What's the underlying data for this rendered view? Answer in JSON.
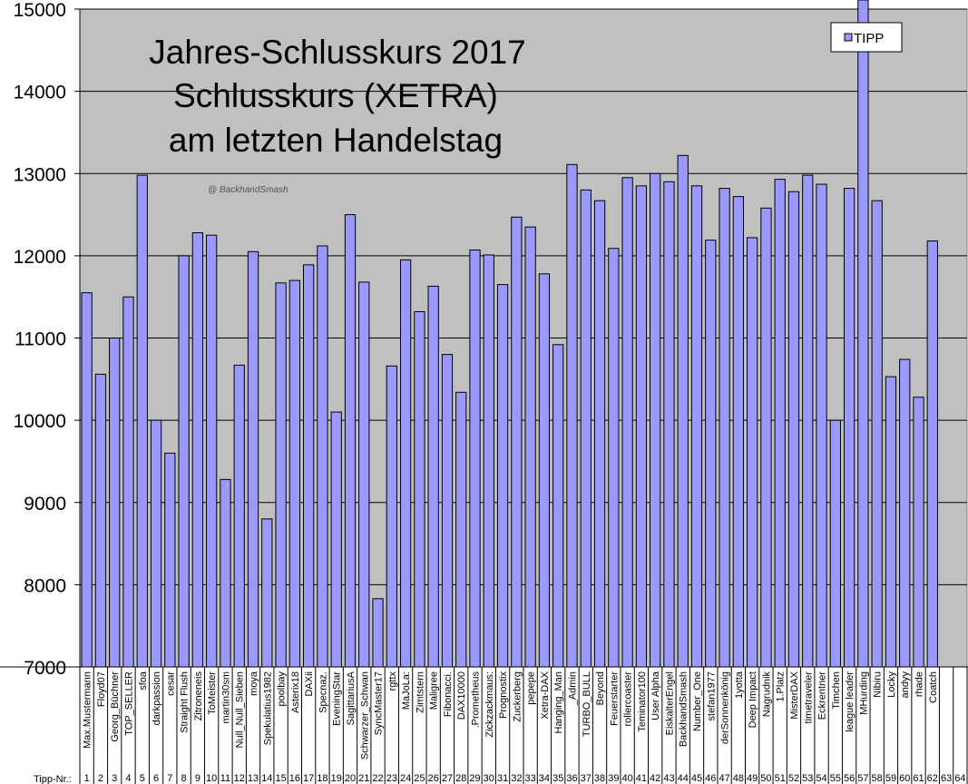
{
  "chart_data": {
    "type": "bar",
    "title": [
      "Jahres-Schlusskurs 2017",
      "Schlusskurs (XETRA)",
      "am letzten Handelstag"
    ],
    "watermark": "@ BackhandSmash",
    "xlabel": "Tipp-Nr.:",
    "ylabel": "",
    "ylim": [
      7000,
      15000
    ],
    "yticks": [
      7000,
      8000,
      9000,
      10000,
      11000,
      12000,
      13000,
      14000,
      15000
    ],
    "grid": true,
    "legend": {
      "position": "top-right",
      "entries": [
        "TIPP"
      ]
    },
    "colors": {
      "bar": "#9999FF",
      "plot_bg": "#C0C0C0",
      "bar_edge": "#000000"
    },
    "categories": [
      "Max.Mustermann",
      "Floyd07",
      "Georg_Büchner",
      "TOP_SELLER",
      "sfoa",
      "darkpassion",
      "cesar",
      "Straight Flush",
      "Zitroneneis",
      "ToMeister",
      "martin30sm",
      "Null_Null_Sieben",
      "moya",
      "Spekulatius1982",
      "poolbay",
      "Asterix18",
      "DAXii",
      "Specnaz.",
      "EveningStar",
      "SagittariusA",
      "Schwarzer_Schwan",
      "SyncMaster17",
      "rgttx",
      "MaJoLa:",
      "Zimtstern",
      "Maligree",
      "Fibonacci.",
      "DAX10000",
      ".Prometheus",
      "Zickzackmaus:",
      "Prognostix",
      "Zuckerberg",
      "pepepe",
      "Xetra-DAX",
      "Hanging_Man",
      "_Admin",
      "TURBO_BULL",
      "Beyond",
      "Feuerstarter",
      "rollercoaster",
      "Teminator100",
      "User Alpha",
      "EiskalterEngel",
      "BackhandSmash",
      "Number_One",
      "stefan1977",
      "derSonnenkönig",
      "1yotta",
      "Deep Impact",
      "Nagrudnik",
      "1.Platz",
      "MisterDAX",
      "timetraveler",
      "Eckrentner",
      "Timchen",
      "league leader",
      "MHurding",
      "Nibiru",
      "Locky",
      "andyy",
      "rhade",
      "Coatch",
      "",
      ""
    ],
    "tipp_nr": [
      "1",
      "2",
      "3",
      "4",
      "5",
      "6",
      "7",
      "8",
      "9",
      "10",
      "11",
      "12",
      "13",
      "14",
      "15",
      "16",
      "17",
      "18",
      "19",
      "20",
      "21",
      "22",
      "23",
      "24",
      "25",
      "26",
      "27",
      "28",
      "29",
      "30",
      "31",
      "32",
      "33",
      "34",
      "35",
      "36",
      "37",
      "38",
      "39",
      "40",
      "41",
      "42",
      "43",
      "44",
      "45",
      "46",
      "47",
      "48",
      "49",
      "50",
      "51",
      "52",
      "53",
      "54",
      "55",
      "56",
      "57",
      "58",
      "59",
      "60",
      "61",
      "62",
      "63",
      "64"
    ],
    "series": [
      {
        "name": "TIPP",
        "values": [
          11550,
          10560,
          11000,
          11500,
          12980,
          10000,
          9600,
          12000,
          12280,
          12250,
          9280,
          10670,
          12050,
          8800,
          11670,
          11700,
          11890,
          12120,
          10100,
          12500,
          11680,
          7830,
          10660,
          11950,
          11320,
          11630,
          10800,
          10340,
          12070,
          12010,
          11650,
          12470,
          12350,
          11780,
          10920,
          13110,
          12800,
          12670,
          12090,
          12950,
          12850,
          13000,
          12900,
          13220,
          12850,
          12190,
          12820,
          12720,
          12220,
          12580,
          12930,
          12780,
          12980,
          12870,
          10000,
          12820,
          15200,
          12670,
          10530,
          10740,
          10280,
          12180,
          null,
          null
        ]
      }
    ]
  }
}
